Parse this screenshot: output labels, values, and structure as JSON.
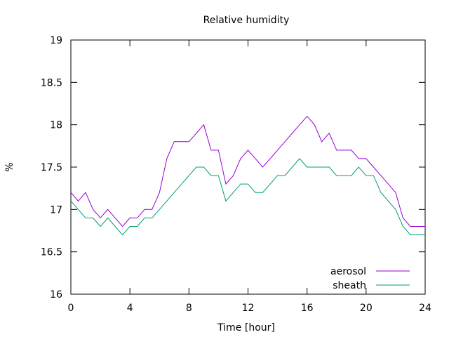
{
  "chart_data": {
    "type": "line",
    "title": "Relative humidity",
    "xlabel": "Time [hour]",
    "ylabel": "%",
    "xlim": [
      0,
      24
    ],
    "ylim": [
      16,
      19
    ],
    "xticks": [
      0,
      4,
      8,
      12,
      16,
      20,
      24
    ],
    "xtick_labels": [
      "0",
      "4",
      "8",
      "12",
      "16",
      "20",
      "24"
    ],
    "yticks": [
      16,
      16.5,
      17,
      17.5,
      18,
      18.5,
      19
    ],
    "ytick_labels": [
      "16",
      "16.5",
      "17",
      "17.5",
      "18",
      "18.5",
      "19"
    ],
    "grid": false,
    "legend": "bottom-right",
    "series": [
      {
        "name": "aerosol",
        "color": "#9400d3",
        "x": [
          0,
          0.5,
          1,
          1.5,
          2,
          2.5,
          3,
          3.5,
          4,
          4.5,
          5,
          5.5,
          6,
          6.5,
          7,
          7.5,
          8,
          8.5,
          9,
          9.5,
          10,
          10.5,
          11,
          11.5,
          12,
          12.5,
          13,
          13.5,
          14,
          14.5,
          15,
          15.5,
          16,
          16.5,
          17,
          17.5,
          18,
          18.5,
          19,
          19.5,
          20,
          20.5,
          21,
          21.5,
          22,
          22.5,
          23,
          23.5,
          24
        ],
        "y": [
          17.2,
          17.1,
          17.2,
          17.0,
          16.9,
          17.0,
          16.9,
          16.8,
          16.9,
          16.9,
          17.0,
          17.0,
          17.2,
          17.6,
          17.8,
          17.8,
          17.8,
          17.9,
          18.0,
          17.7,
          17.7,
          17.3,
          17.4,
          17.6,
          17.7,
          17.6,
          17.5,
          17.6,
          17.7,
          17.8,
          17.9,
          18.0,
          18.1,
          18.0,
          17.8,
          17.9,
          17.7,
          17.7,
          17.7,
          17.6,
          17.6,
          17.5,
          17.4,
          17.3,
          17.2,
          16.9,
          16.8,
          16.8,
          16.8
        ]
      },
      {
        "name": "sheath",
        "color": "#009e73",
        "x": [
          0,
          0.5,
          1,
          1.5,
          2,
          2.5,
          3,
          3.5,
          4,
          4.5,
          5,
          5.5,
          6,
          6.5,
          7,
          7.5,
          8,
          8.5,
          9,
          9.5,
          10,
          10.5,
          11,
          11.5,
          12,
          12.5,
          13,
          13.5,
          14,
          14.5,
          15,
          15.5,
          16,
          16.5,
          17,
          17.5,
          18,
          18.5,
          19,
          19.5,
          20,
          20.5,
          21,
          21.5,
          22,
          22.5,
          23,
          23.5,
          24
        ],
        "y": [
          17.1,
          17.0,
          16.9,
          16.9,
          16.8,
          16.9,
          16.8,
          16.7,
          16.8,
          16.8,
          16.9,
          16.9,
          17.0,
          17.1,
          17.2,
          17.3,
          17.4,
          17.5,
          17.5,
          17.4,
          17.4,
          17.1,
          17.2,
          17.3,
          17.3,
          17.2,
          17.2,
          17.3,
          17.4,
          17.4,
          17.5,
          17.6,
          17.5,
          17.5,
          17.5,
          17.5,
          17.4,
          17.4,
          17.4,
          17.5,
          17.4,
          17.4,
          17.2,
          17.1,
          17.0,
          16.8,
          16.7,
          16.7,
          16.7
        ]
      }
    ]
  }
}
